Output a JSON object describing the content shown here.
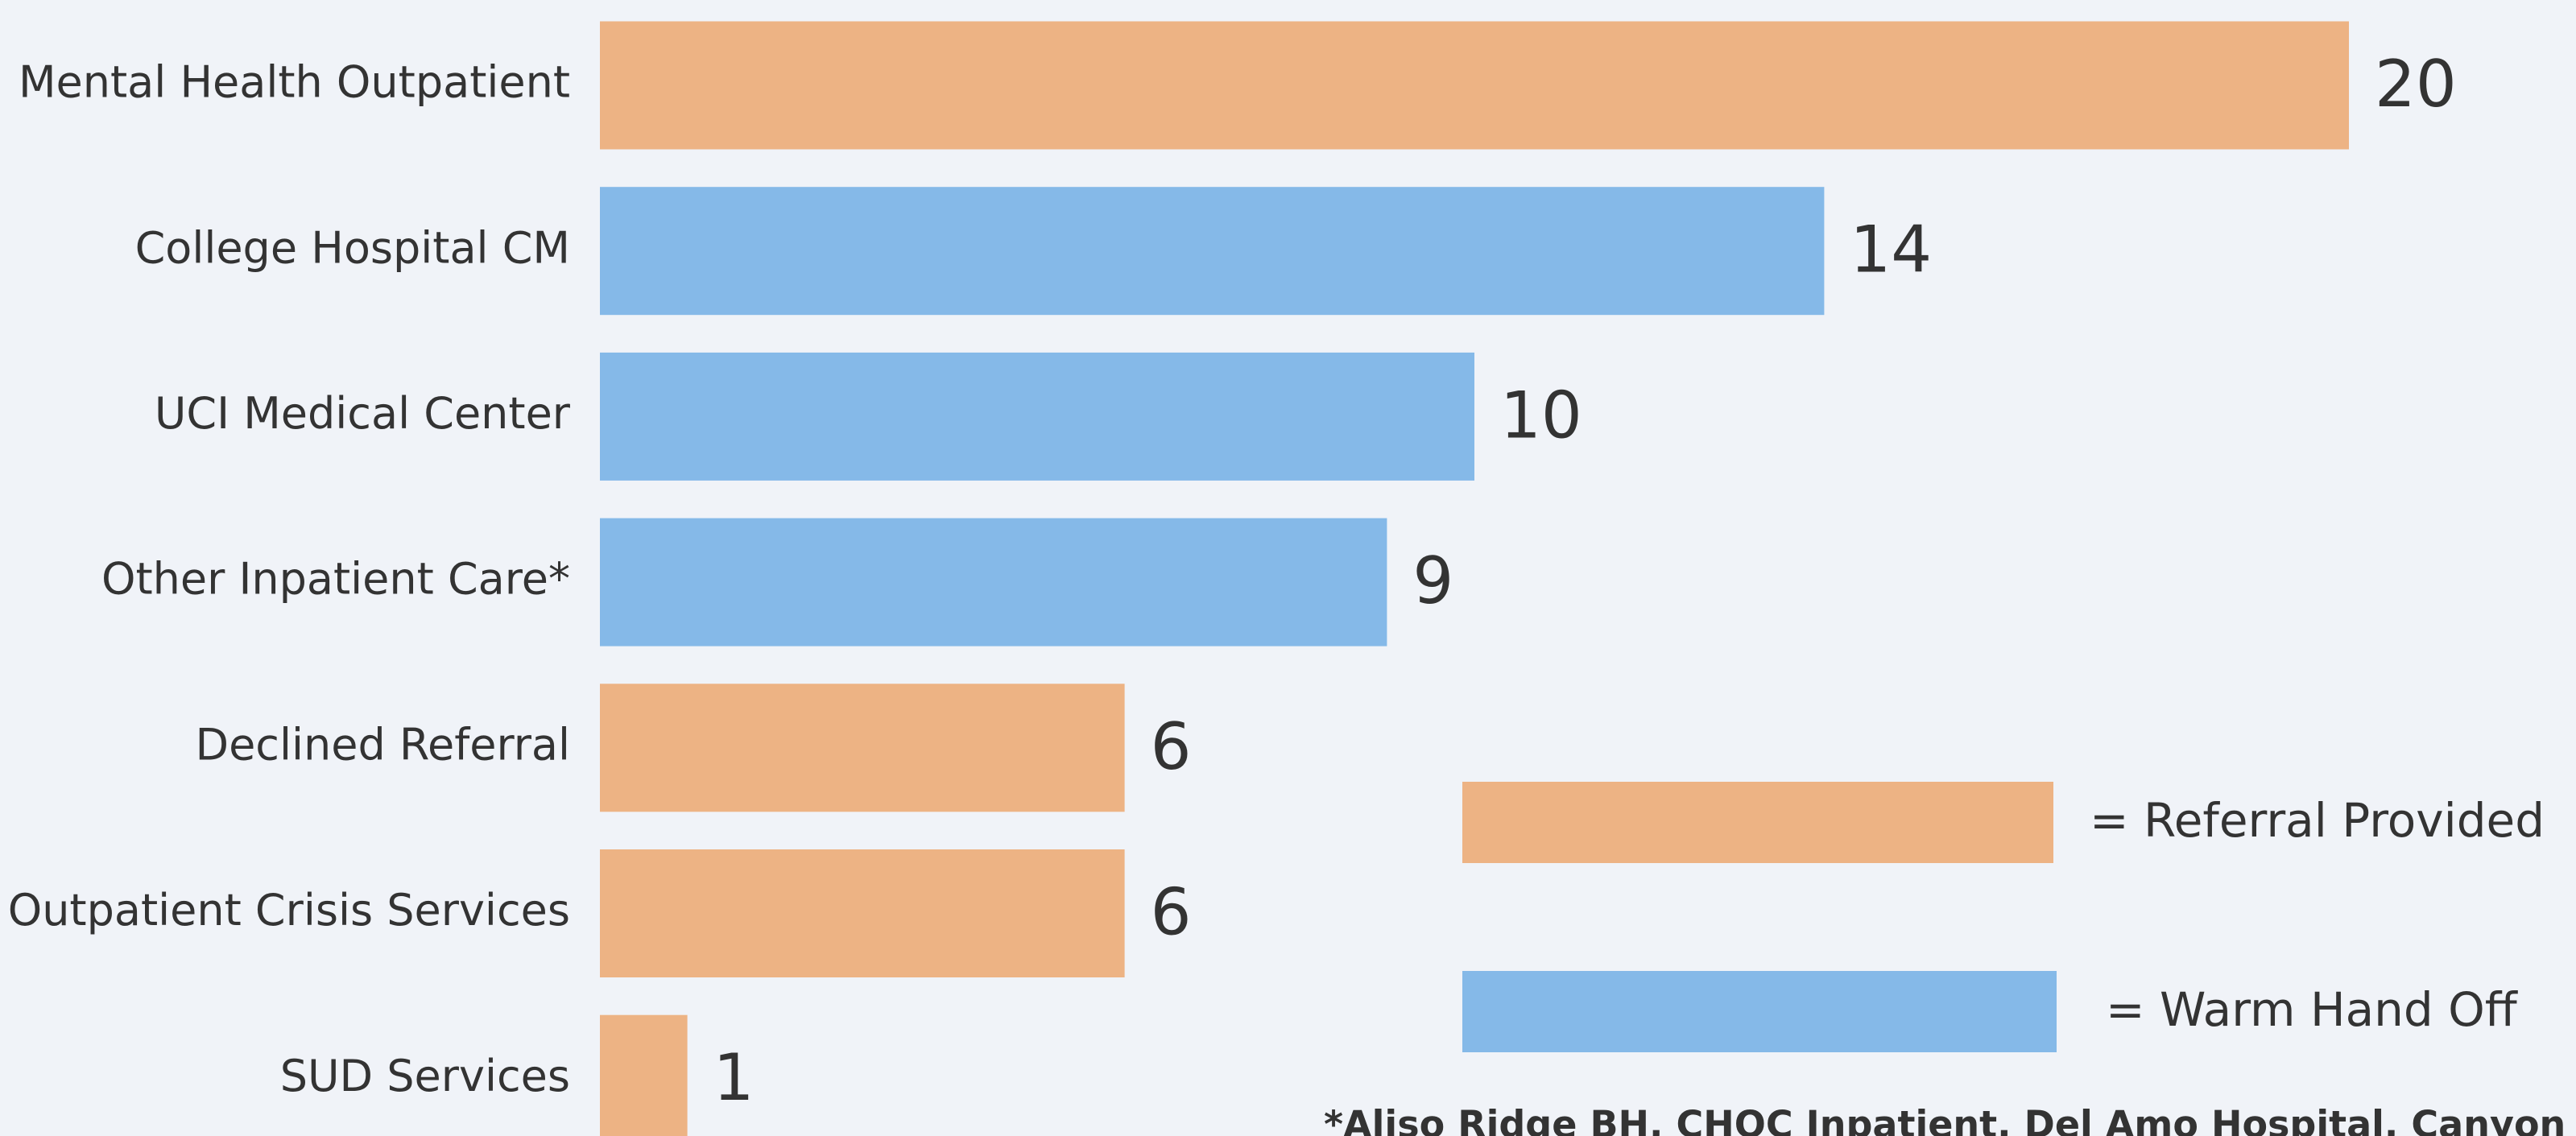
{
  "chart_data": {
    "type": "barh",
    "categories": [
      "Mental Health Outpatient",
      "College Hospital CM",
      "UCI Medical Center",
      "Other Inpatient Care*",
      "Declined Referral",
      "Outpatient Crisis Services",
      "SUD Services"
    ],
    "series": [
      {
        "name": "= Referral Provided",
        "color": "#EDB384",
        "values": [
          20,
          null,
          null,
          null,
          6,
          6,
          1
        ]
      },
      {
        "name": "= Warm Hand Off",
        "color": "#85B9E8",
        "values": [
          null,
          14,
          10,
          9,
          null,
          null,
          null
        ]
      }
    ],
    "footnote": "*Aliso Ridge BH, CHOC Inpatient, Del Amo Hospital, Canyon Ridge"
  }
}
